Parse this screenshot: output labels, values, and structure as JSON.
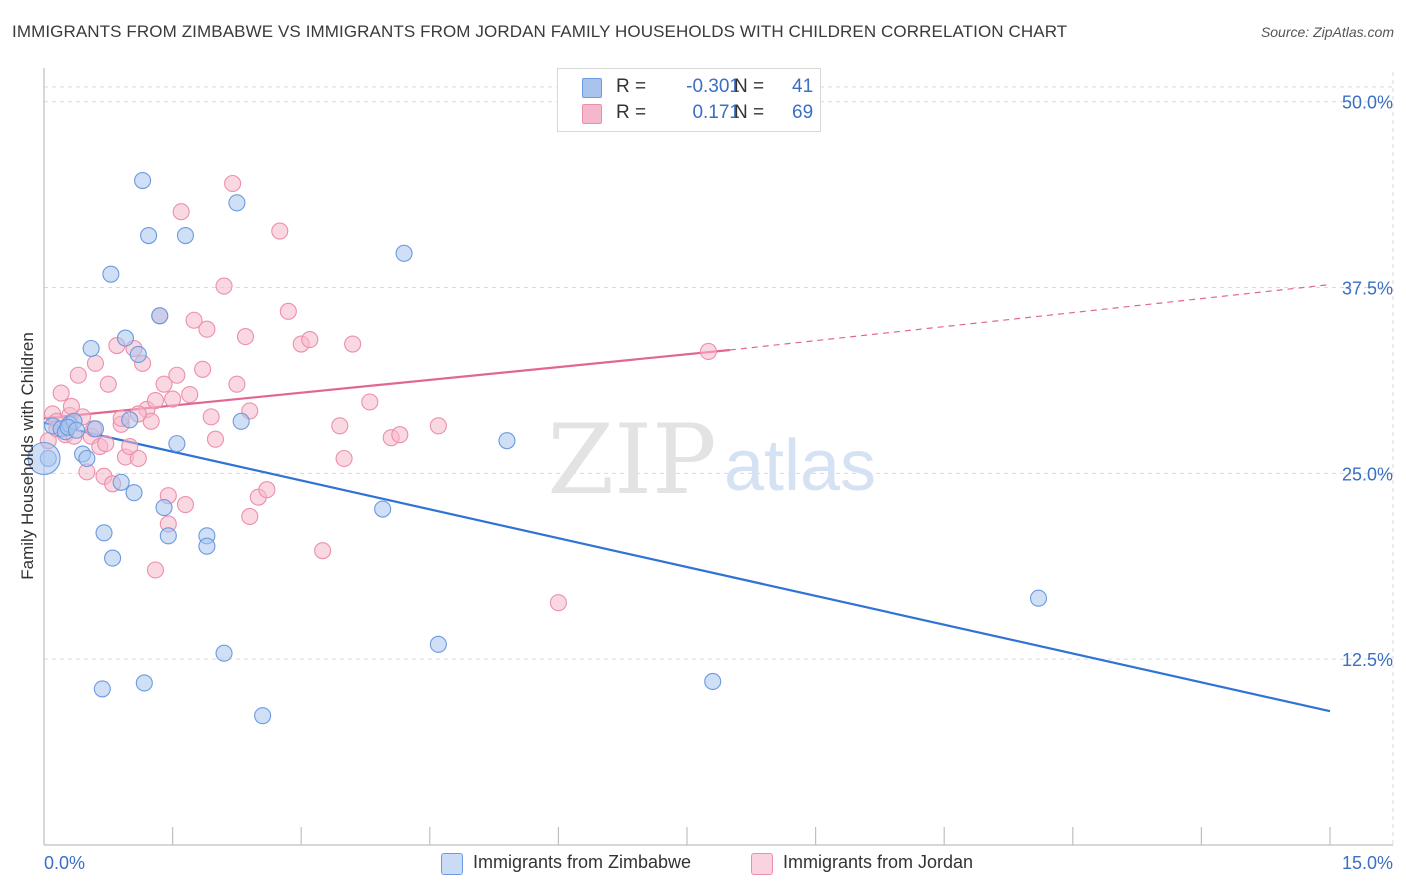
{
  "title": "IMMIGRANTS FROM ZIMBABWE VS IMMIGRANTS FROM JORDAN FAMILY HOUSEHOLDS WITH CHILDREN CORRELATION CHART",
  "source": "Source: ZipAtlas.com",
  "watermark": {
    "zip": "ZIP",
    "atlas": "atlas"
  },
  "stats": {
    "zimbabwe": {
      "r_label": "R =",
      "r_value": "-0.301",
      "n_label": "N =",
      "n_value": "41"
    },
    "jordan": {
      "r_label": "R =",
      "r_value": "0.171",
      "n_label": "N =",
      "n_value": "69"
    }
  },
  "colors": {
    "zimbabwe_fill": "#a8c4ee",
    "zimbabwe_stroke": "#6b9ae0",
    "zimbabwe_line": "#2f73d4",
    "jordan_fill": "#f5b8cb",
    "jordan_stroke": "#ec8fac",
    "jordan_line": "#e26690",
    "tick_label": "#3a6fc4",
    "grid": "#d9d9d9"
  },
  "chart_data": {
    "type": "scatter",
    "title": "IMMIGRANTS FROM ZIMBABWE VS IMMIGRANTS FROM JORDAN FAMILY HOUSEHOLDS WITH CHILDREN CORRELATION CHART",
    "xlabel": "",
    "ylabel": "Family Households with Children",
    "xlim": [
      0,
      15
    ],
    "ylim": [
      0,
      52
    ],
    "x_tick_labels": [
      "0.0%",
      "15.0%"
    ],
    "y_ticks": [
      12.5,
      25.0,
      37.5,
      50.0
    ],
    "y_tick_labels": [
      "12.5%",
      "25.0%",
      "37.5%",
      "50.0%"
    ],
    "grid": true,
    "legend_position": "bottom-center",
    "series": [
      {
        "name": "Immigrants from Zimbabwe",
        "points": [
          [
            0.05,
            26.0
          ],
          [
            0.1,
            28.2
          ],
          [
            0.2,
            28.0
          ],
          [
            0.25,
            27.8
          ],
          [
            0.3,
            28.3
          ],
          [
            0.35,
            28.5
          ],
          [
            0.45,
            26.3
          ],
          [
            0.5,
            26.0
          ],
          [
            0.55,
            33.4
          ],
          [
            0.6,
            28.0
          ],
          [
            0.7,
            21.0
          ],
          [
            0.78,
            38.4
          ],
          [
            0.8,
            19.3
          ],
          [
            0.9,
            24.4
          ],
          [
            0.95,
            34.1
          ],
          [
            1.0,
            28.6
          ],
          [
            1.05,
            23.7
          ],
          [
            1.1,
            33.0
          ],
          [
            1.15,
            44.7
          ],
          [
            1.22,
            41.0
          ],
          [
            1.35,
            35.6
          ],
          [
            1.4,
            22.7
          ],
          [
            1.45,
            20.8
          ],
          [
            1.55,
            27.0
          ],
          [
            1.65,
            41.0
          ],
          [
            1.9,
            20.8
          ],
          [
            1.9,
            20.1
          ],
          [
            2.1,
            12.9
          ],
          [
            2.25,
            43.2
          ],
          [
            2.3,
            28.5
          ],
          [
            2.55,
            8.7
          ],
          [
            3.95,
            22.6
          ],
          [
            4.2,
            39.8
          ],
          [
            4.6,
            13.5
          ],
          [
            5.4,
            27.2
          ],
          [
            7.8,
            11.0
          ],
          [
            11.6,
            16.6
          ],
          [
            0.68,
            10.5
          ],
          [
            1.17,
            10.9
          ],
          [
            0.28,
            28.1
          ],
          [
            0.38,
            27.9
          ]
        ],
        "trend_line": {
          "x": [
            0,
            15
          ],
          "y": [
            28.4,
            9.0
          ]
        }
      },
      {
        "name": "Immigrants from Jordan",
        "points": [
          [
            0.05,
            27.2
          ],
          [
            0.1,
            29.0
          ],
          [
            0.15,
            28.5
          ],
          [
            0.2,
            30.4
          ],
          [
            0.25,
            27.6
          ],
          [
            0.3,
            28.9
          ],
          [
            0.35,
            27.5
          ],
          [
            0.4,
            31.6
          ],
          [
            0.45,
            28.8
          ],
          [
            0.5,
            25.1
          ],
          [
            0.55,
            27.5
          ],
          [
            0.6,
            32.4
          ],
          [
            0.65,
            26.8
          ],
          [
            0.7,
            24.8
          ],
          [
            0.75,
            31.0
          ],
          [
            0.8,
            24.3
          ],
          [
            0.85,
            33.6
          ],
          [
            0.9,
            28.3
          ],
          [
            0.95,
            26.1
          ],
          [
            1.0,
            26.8
          ],
          [
            1.05,
            33.4
          ],
          [
            1.1,
            26.0
          ],
          [
            1.15,
            32.4
          ],
          [
            1.2,
            29.3
          ],
          [
            1.25,
            28.5
          ],
          [
            1.3,
            29.9
          ],
          [
            1.35,
            35.6
          ],
          [
            1.4,
            31.0
          ],
          [
            1.45,
            21.6
          ],
          [
            1.5,
            30.0
          ],
          [
            1.55,
            31.6
          ],
          [
            1.6,
            42.6
          ],
          [
            1.65,
            22.9
          ],
          [
            1.75,
            35.3
          ],
          [
            1.85,
            32.0
          ],
          [
            1.9,
            34.7
          ],
          [
            1.95,
            28.8
          ],
          [
            2.0,
            27.3
          ],
          [
            2.1,
            37.6
          ],
          [
            2.2,
            44.5
          ],
          [
            2.25,
            31.0
          ],
          [
            2.35,
            34.2
          ],
          [
            2.4,
            22.1
          ],
          [
            2.5,
            23.4
          ],
          [
            2.6,
            23.9
          ],
          [
            2.75,
            41.3
          ],
          [
            2.85,
            35.9
          ],
          [
            3.0,
            33.7
          ],
          [
            3.1,
            34.0
          ],
          [
            3.25,
            19.8
          ],
          [
            3.45,
            28.2
          ],
          [
            3.5,
            26.0
          ],
          [
            3.6,
            33.7
          ],
          [
            3.8,
            29.8
          ],
          [
            4.05,
            27.4
          ],
          [
            4.15,
            27.6
          ],
          [
            4.6,
            28.2
          ],
          [
            6.0,
            16.3
          ],
          [
            7.75,
            33.2
          ],
          [
            1.3,
            18.5
          ],
          [
            1.45,
            23.5
          ],
          [
            0.58,
            28.0
          ],
          [
            0.72,
            27.0
          ],
          [
            0.15,
            28.0
          ],
          [
            0.32,
            29.5
          ],
          [
            1.1,
            29.0
          ],
          [
            0.9,
            28.7
          ],
          [
            2.4,
            29.2
          ],
          [
            1.7,
            30.3
          ]
        ],
        "trend_line": {
          "x": [
            0,
            8.0
          ],
          "y": [
            28.7,
            33.3
          ]
        },
        "trend_extension": {
          "x": [
            8.0,
            15
          ],
          "y": [
            33.3,
            37.7
          ]
        }
      }
    ]
  },
  "legend": {
    "zimbabwe": "Immigrants from Zimbabwe",
    "jordan": "Immigrants from Jordan"
  }
}
